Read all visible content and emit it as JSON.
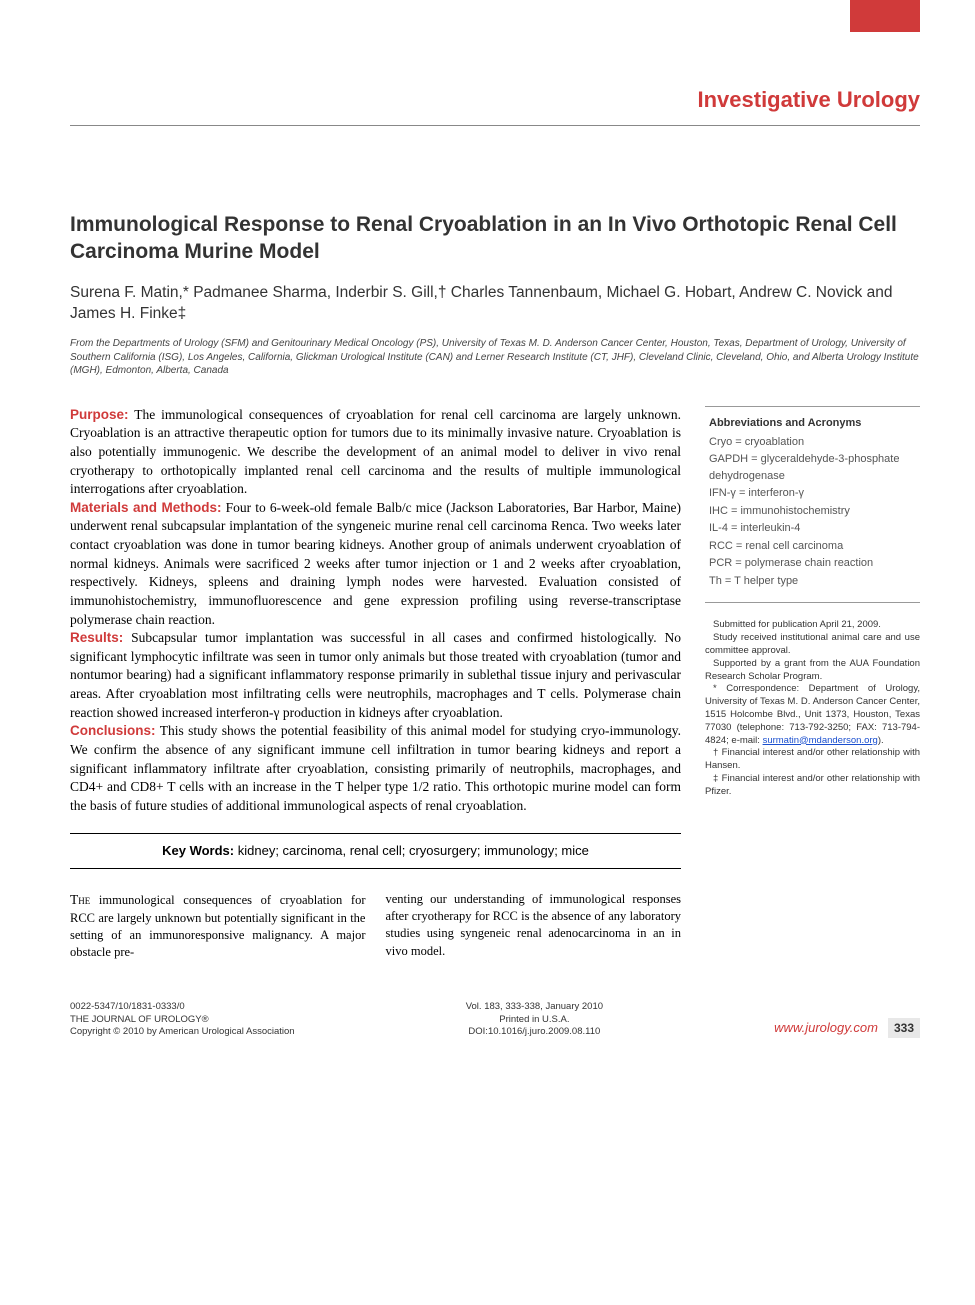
{
  "colors": {
    "accent": "#d03a3a",
    "text": "#000000",
    "muted": "#555555",
    "link": "#1a4fcf",
    "bg": "#ffffff"
  },
  "header": {
    "section": "Investigative Urology"
  },
  "article": {
    "title": "Immunological Response to Renal Cryoablation in an In Vivo Orthotopic Renal Cell Carcinoma Murine Model",
    "authors": "Surena F. Matin,* Padmanee Sharma, Inderbir S. Gill,† Charles Tannenbaum, Michael G. Hobart, Andrew C. Novick and James H. Finke‡",
    "affiliations": "From the Departments of Urology (SFM) and Genitourinary Medical Oncology (PS), University of Texas M. D. Anderson Cancer Center, Houston, Texas, Department of Urology, University of Southern California (ISG), Los Angeles, California, Glickman Urological Institute (CAN) and Lerner Research Institute (CT, JHF), Cleveland Clinic, Cleveland, Ohio, and Alberta Urology Institute (MGH), Edmonton, Alberta, Canada"
  },
  "abstract": {
    "purpose": {
      "head": "Purpose:",
      "text": " The immunological consequences of cryoablation for renal cell carcinoma are largely unknown. Cryoablation is an attractive therapeutic option for tumors due to its minimally invasive nature. Cryoablation is also potentially immunogenic. We describe the development of an animal model to deliver in vivo renal cryotherapy to orthotopically implanted renal cell carcinoma and the results of multiple immunological interrogations after cryoablation."
    },
    "methods": {
      "head": "Materials and Methods:",
      "text": " Four to 6-week-old female Balb/c mice (Jackson Laboratories, Bar Harbor, Maine) underwent renal subcapsular implantation of the syngeneic murine renal cell carcinoma Renca. Two weeks later contact cryoablation was done in tumor bearing kidneys. Another group of animals underwent cryoablation of normal kidneys. Animals were sacrificed 2 weeks after tumor injection or 1 and 2 weeks after cryoablation, respectively. Kidneys, spleens and draining lymph nodes were harvested. Evaluation consisted of immunohistochemistry, immunofluorescence and gene expression profiling using reverse-transcriptase polymerase chain reaction."
    },
    "results": {
      "head": "Results:",
      "text": " Subcapsular tumor implantation was successful in all cases and confirmed histologically. No significant lymphocytic infiltrate was seen in tumor only animals but those treated with cryoablation (tumor and nontumor bearing) had a significant inflammatory response primarily in sublethal tissue injury and perivascular areas. After cryoablation most infiltrating cells were neutrophils, macrophages and T cells. Polymerase chain reaction showed increased interferon-γ production in kidneys after cryoablation."
    },
    "conclusions": {
      "head": "Conclusions:",
      "text": " This study shows the potential feasibility of this animal model for studying cryo-immunology. We confirm the absence of any significant immune cell infiltration in tumor bearing kidneys and report a significant inflammatory infiltrate after cryoablation, consisting primarily of neutrophils, macrophages, and CD4+ and CD8+ T cells with an increase in the T helper type 1/2 ratio. This orthotopic murine model can form the basis of future studies of additional immunological aspects of renal cryoablation."
    }
  },
  "keywords": {
    "label": "Key Words:",
    "text": " kidney; carcinoma, renal cell; cryosurgery; immunology; mice"
  },
  "body": {
    "col1_open": "The",
    "col1": " immunological consequences of cryoablation for RCC are largely unknown but potentially significant in the setting of an immunoresponsive malignancy. A major obstacle pre-",
    "col2": "venting our understanding of immunological responses after cryotherapy for RCC is the absence of any laboratory studies using syngeneic renal adenocarcinoma in an in vivo model."
  },
  "abbreviations": {
    "title": "Abbreviations and Acronyms",
    "items": [
      "Cryo = cryoablation",
      "GAPDH = glyceraldehyde-3-phosphate dehydrogenase",
      "IFN-γ = interferon-γ",
      "IHC = immunohistochemistry",
      "IL-4 = interleukin-4",
      "RCC = renal cell carcinoma",
      "PCR = polymerase chain reaction",
      "Th = T helper type"
    ]
  },
  "notes": {
    "submitted": "Submitted for publication April 21, 2009.",
    "ethics": "Study received institutional animal care and use committee approval.",
    "support": "Supported by a grant from the AUA Foundation Research Scholar Program.",
    "correspondence_pre": "* Correspondence: Department of Urology, University of Texas M. D. Anderson Cancer Center, 1515 Holcombe Blvd., Unit 1373, Houston, Texas 77030 (telephone: 713-792-3250; FAX: 713-794-4824; e-mail: ",
    "correspondence_email": "surmatin@mdanderson.org",
    "correspondence_post": ").",
    "dagger": "† Financial interest and/or other relationship with Hansen.",
    "ddagger": "‡ Financial interest and/or other relationship with Pfizer."
  },
  "footer": {
    "left1": "0022-5347/10/1831-0333/0",
    "left2": "THE JOURNAL OF UROLOGY®",
    "left3": "Copyright © 2010 by American Urological Association",
    "center1": "Vol. 183, 333-338, January 2010",
    "center2": "Printed in U.S.A.",
    "center3": "DOI:10.1016/j.juro.2009.08.110",
    "website": "www.jurology.com",
    "page": "333"
  }
}
